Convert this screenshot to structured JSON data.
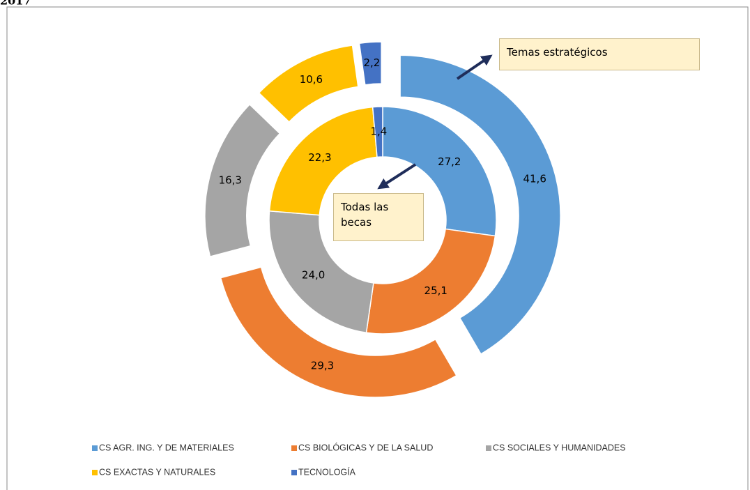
{
  "chart_data": {
    "type": "donut",
    "title": "2017",
    "categories": [
      "CS AGR. ING. Y DE MATERIALES",
      "CS BIOLÓGICAS Y DE LA SALUD",
      "CS SOCIALES Y HUMANIDADES",
      "CS EXACTAS Y NATURALES",
      "TECNOLOGÍA"
    ],
    "colors": [
      "#5b9bd5",
      "#ed7d31",
      "#a5a5a5",
      "#ffc000",
      "#4472c4"
    ],
    "series": [
      {
        "name": "Todas las becas",
        "values": [
          27.2,
          25.1,
          24.0,
          22.3,
          1.4
        ],
        "value_labels": [
          "27,2",
          "25,1",
          "24,0",
          "22,3",
          "1,4"
        ]
      },
      {
        "name": "Temas estratégicos",
        "values": [
          41.6,
          29.3,
          16.3,
          10.6,
          2.2
        ],
        "value_labels": [
          "41,6",
          "29,3",
          "16,3",
          "10,6",
          "2,2"
        ],
        "exploded": true
      }
    ]
  }
}
